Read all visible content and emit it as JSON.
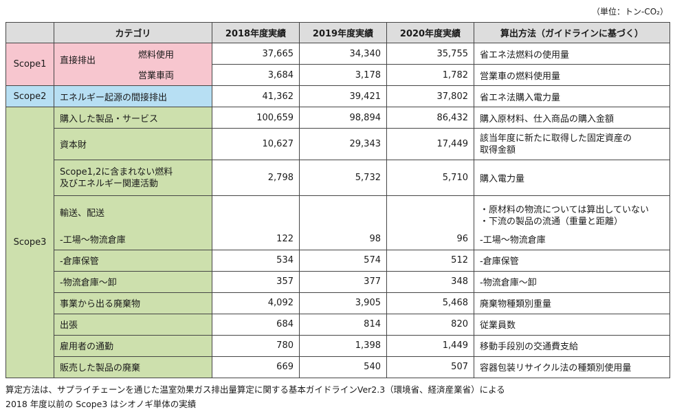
{
  "unit_note": "（単位：トン-CO₂）",
  "header": {
    "category": "カテゴリ",
    "y2018": "2018年度実績",
    "y2019": "2019年度実績",
    "y2020": "2020年度実績",
    "method": "算出方法（ガイドラインに基づく）"
  },
  "scope1": {
    "label": "Scope1",
    "group": "直接排出",
    "rows": [
      {
        "sub": "燃料使用",
        "v2018": "37,665",
        "v2019": "34,340",
        "v2020": "35,755",
        "method": "省エネ法燃料の使用量"
      },
      {
        "sub": "営業車両",
        "v2018": "3,684",
        "v2019": "3,178",
        "v2020": "1,782",
        "method": "営業車の燃料使用量"
      }
    ]
  },
  "scope2": {
    "label": "Scope2",
    "row": {
      "category": "エネルギー起源の間接排出",
      "v2018": "41,362",
      "v2019": "39,421",
      "v2020": "37,802",
      "method": "省エネ法購入電力量"
    }
  },
  "scope3": {
    "label": "Scope3",
    "purchased": {
      "category": "購入した製品・サービス",
      "v2018": "100,659",
      "v2019": "98,894",
      "v2020": "86,432",
      "method": "購入原材料、仕入商品の購入金額"
    },
    "capital": {
      "category": "資本財",
      "v2018": "10,627",
      "v2019": "29,343",
      "v2020": "17,449",
      "method_line1": "該当年度に新たに取得した固定資産の",
      "method_line2": "取得金額"
    },
    "fuel": {
      "category_line1": "Scope1,2に含まれない燃料",
      "category_line2": "及びエネルギー関連活動",
      "v2018": "2,798",
      "v2019": "5,732",
      "v2020": "5,710",
      "method": "購入電力量"
    },
    "transport": {
      "category": "輸送、配送",
      "method_line1": "・原材料の物流については算出していない",
      "method_line2": "・下流の製品の流通（重量と距離）",
      "rows": [
        {
          "category": "-工場～物流倉庫",
          "v2018": "122",
          "v2019": "98",
          "v2020": "96",
          "method": "-工場～物流倉庫"
        },
        {
          "category": "-倉庫保管",
          "v2018": "534",
          "v2019": "574",
          "v2020": "512",
          "method": "-倉庫保管"
        },
        {
          "category": "-物流倉庫～卸",
          "v2018": "357",
          "v2019": "377",
          "v2020": "348",
          "method": "-物流倉庫～卸"
        }
      ]
    },
    "waste": {
      "category": "事業から出る廃棄物",
      "v2018": "4,092",
      "v2019": "3,905",
      "v2020": "5,468",
      "method": "廃棄物種類別重量"
    },
    "travel": {
      "category": "出張",
      "v2018": "684",
      "v2019": "814",
      "v2020": "820",
      "method": "従業員数"
    },
    "commute": {
      "category": "雇用者の通勤",
      "v2018": "780",
      "v2019": "1,398",
      "v2020": "1,449",
      "method": "移動手段別の交通費支給"
    },
    "disposal": {
      "category": "販売した製品の廃棄",
      "v2018": "669",
      "v2019": "540",
      "v2020": "507",
      "method": "容器包装リサイクル法の種類別使用量"
    }
  },
  "footnote_1": "算定方法は、サプライチェーンを通じた温室効果ガス排出量算定に関する基本ガイドラインVer2.3（環境省、経済産業省）による",
  "footnote_2": "2018 年度以前の Scope3 はシオノギ単体の実績"
}
